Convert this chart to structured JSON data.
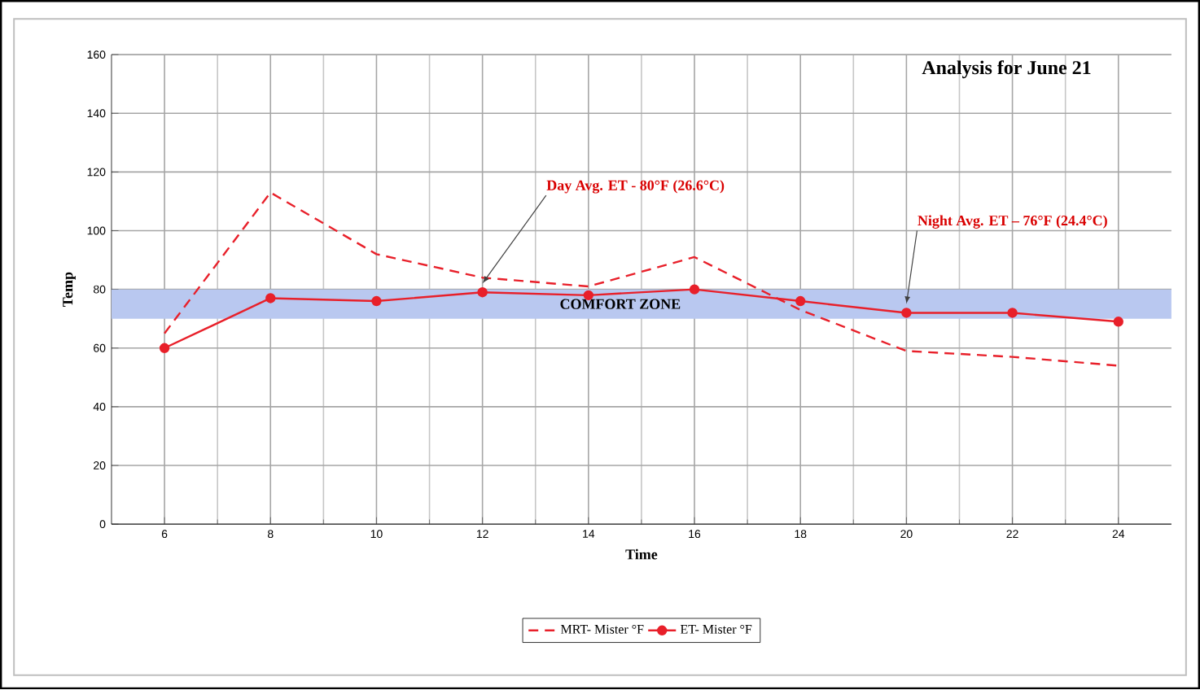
{
  "chart_data": {
    "type": "line",
    "title": "Analysis for June 21",
    "xlabel": "Time",
    "ylabel": "Temp",
    "categories": [
      "6",
      "8",
      "10",
      "12",
      "14",
      "16",
      "18",
      "20",
      "22",
      "24"
    ],
    "series": [
      {
        "name": "MRT- Mister °F",
        "color": "#e8202a",
        "line_style": "dashed",
        "marker": "none",
        "values": [
          65,
          113,
          92,
          84,
          81,
          91,
          73,
          59,
          57,
          54
        ]
      },
      {
        "name": "ET- Mister °F",
        "color": "#e8202a",
        "line_style": "solid",
        "marker": "circle",
        "values": [
          60,
          77,
          76,
          79,
          78,
          80,
          76,
          72,
          72,
          69
        ]
      }
    ],
    "ylim": [
      0,
      160
    ],
    "yticks": [
      0,
      20,
      40,
      60,
      80,
      100,
      120,
      140,
      160
    ],
    "bands": [
      {
        "axis": "y",
        "from": 70,
        "to": 80,
        "label": "COMFORT ZONE",
        "color": "#b9c8f0"
      }
    ],
    "annotations": [
      {
        "text": "Day Avg. ET - 80°F (26.6°C)",
        "x": "12",
        "y": 82
      },
      {
        "text": "Night Avg. ET – 76°F (24.4°C)",
        "x": "20",
        "y": 75
      }
    ],
    "grid": true,
    "legend": "bottom"
  }
}
